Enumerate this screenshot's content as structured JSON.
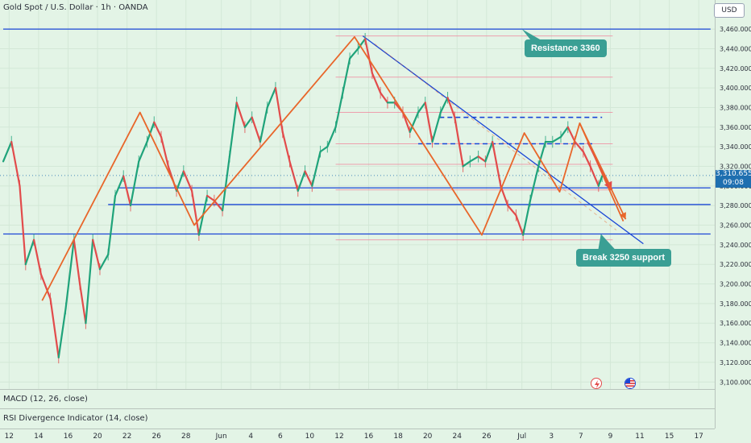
{
  "header": {
    "symbol_title": "Gold Spot / U.S. Dollar · 1h · OANDA",
    "currency": "USD"
  },
  "price_tag": {
    "price": "3,310.655",
    "countdown": "09:08"
  },
  "callouts": {
    "resistance": "Resistance 3360",
    "break_support": "Break 3250 support"
  },
  "indicators": {
    "macd": "MACD (12, 26, close)",
    "rsi": "RSI Divergence Indicator (14, close)"
  },
  "icons": {
    "flash": "flash-icon",
    "flag": "us-flag-icon"
  },
  "colors": {
    "background": "#e3f4e6",
    "candle_up": "#1fa37a",
    "candle_down": "#e24b4b",
    "trendline": "#1a46d6",
    "pattern": "#e8662a",
    "fib_level": "#f08aa0",
    "callout": "#3a9f94",
    "price_tag": "#1e6fb0"
  },
  "chart_data": {
    "type": "line",
    "symbol": "Gold Spot / U.S. Dollar",
    "interval": "1h",
    "source": "OANDA",
    "ylim": [
      3090,
      3475
    ],
    "y_ticks": [
      3100,
      3120,
      3140,
      3160,
      3180,
      3200,
      3220,
      3240,
      3260,
      3280,
      3300,
      3320,
      3340,
      3360,
      3380,
      3400,
      3420,
      3440,
      3460
    ],
    "y_tick_labels": [
      "3,100.000",
      "3,120.000",
      "3,140.000",
      "3,160.000",
      "3,180.000",
      "3,200.000",
      "3,220.000",
      "3,240.000",
      "3,260.000",
      "3,280.000",
      "3,300.000",
      "3,320.000",
      "3,340.000",
      "3,360.000",
      "3,380.000",
      "3,400.000",
      "3,420.000",
      "3,440.000",
      "3,460.000"
    ],
    "x_ticks": [
      {
        "label": "12",
        "d": 0.5
      },
      {
        "label": "14",
        "d": 3
      },
      {
        "label": "16",
        "d": 5.5
      },
      {
        "label": "20",
        "d": 8
      },
      {
        "label": "22",
        "d": 10.5
      },
      {
        "label": "26",
        "d": 13
      },
      {
        "label": "28",
        "d": 15.5
      },
      {
        "label": "Jun",
        "d": 18.5
      },
      {
        "label": "4",
        "d": 21
      },
      {
        "label": "6",
        "d": 23.5
      },
      {
        "label": "10",
        "d": 26
      },
      {
        "label": "12",
        "d": 28.5
      },
      {
        "label": "16",
        "d": 31
      },
      {
        "label": "18",
        "d": 33.5
      },
      {
        "label": "20",
        "d": 36
      },
      {
        "label": "24",
        "d": 38.5
      },
      {
        "label": "26",
        "d": 41
      },
      {
        "label": "Jul",
        "d": 44
      },
      {
        "label": "3",
        "d": 46.5
      },
      {
        "label": "7",
        "d": 49
      },
      {
        "label": "9",
        "d": 51.5
      },
      {
        "label": "11",
        "d": 54
      },
      {
        "label": "15",
        "d": 56.5
      },
      {
        "label": "17",
        "d": 59
      }
    ],
    "xlim": [
      0,
      60
    ],
    "last_price": 3310.655,
    "price_path": [
      [
        0,
        3325
      ],
      [
        0.7,
        3345
      ],
      [
        1.4,
        3300
      ],
      [
        1.9,
        3220
      ],
      [
        2.6,
        3245
      ],
      [
        3.2,
        3210
      ],
      [
        4.0,
        3185
      ],
      [
        4.7,
        3125
      ],
      [
        5.3,
        3175
      ],
      [
        6.0,
        3245
      ],
      [
        6.5,
        3200
      ],
      [
        7.0,
        3160
      ],
      [
        7.6,
        3245
      ],
      [
        8.2,
        3215
      ],
      [
        8.9,
        3230
      ],
      [
        9.5,
        3290
      ],
      [
        10.2,
        3310
      ],
      [
        10.8,
        3280
      ],
      [
        11.5,
        3325
      ],
      [
        12.2,
        3345
      ],
      [
        12.8,
        3365
      ],
      [
        13.4,
        3350
      ],
      [
        14.0,
        3320
      ],
      [
        14.7,
        3295
      ],
      [
        15.3,
        3315
      ],
      [
        16.0,
        3295
      ],
      [
        16.6,
        3250
      ],
      [
        17.3,
        3290
      ],
      [
        17.9,
        3285
      ],
      [
        18.6,
        3275
      ],
      [
        19.2,
        3330
      ],
      [
        19.8,
        3385
      ],
      [
        20.5,
        3360
      ],
      [
        21.1,
        3370
      ],
      [
        21.8,
        3345
      ],
      [
        22.4,
        3380
      ],
      [
        23.1,
        3400
      ],
      [
        23.7,
        3355
      ],
      [
        24.3,
        3325
      ],
      [
        25.0,
        3295
      ],
      [
        25.6,
        3315
      ],
      [
        26.2,
        3300
      ],
      [
        26.9,
        3335
      ],
      [
        27.5,
        3340
      ],
      [
        28.2,
        3360
      ],
      [
        28.8,
        3395
      ],
      [
        29.4,
        3430
      ],
      [
        30.1,
        3440
      ],
      [
        30.7,
        3450
      ],
      [
        31.3,
        3415
      ],
      [
        32.0,
        3395
      ],
      [
        32.6,
        3385
      ],
      [
        33.2,
        3385
      ],
      [
        33.9,
        3375
      ],
      [
        34.5,
        3355
      ],
      [
        35.2,
        3375
      ],
      [
        35.8,
        3385
      ],
      [
        36.4,
        3345
      ],
      [
        37.1,
        3375
      ],
      [
        37.7,
        3390
      ],
      [
        38.3,
        3370
      ],
      [
        39.0,
        3320
      ],
      [
        39.6,
        3325
      ],
      [
        40.3,
        3330
      ],
      [
        40.9,
        3325
      ],
      [
        41.5,
        3345
      ],
      [
        42.2,
        3300
      ],
      [
        42.8,
        3280
      ],
      [
        43.5,
        3270
      ],
      [
        44.1,
        3250
      ],
      [
        44.7,
        3285
      ],
      [
        45.4,
        3320
      ],
      [
        46.0,
        3345
      ],
      [
        46.6,
        3345
      ],
      [
        47.3,
        3350
      ],
      [
        47.9,
        3360
      ],
      [
        48.5,
        3345
      ],
      [
        49.2,
        3335
      ],
      [
        49.8,
        3320
      ],
      [
        50.5,
        3300
      ],
      [
        50.8,
        3310
      ]
    ],
    "trendlines": [
      {
        "name": "resistance",
        "from": [
          0,
          3460
        ],
        "to": [
          60,
          3460
        ]
      },
      {
        "name": "support-upper",
        "from": [
          9.8,
          3298
        ],
        "to": [
          60,
          3298
        ]
      },
      {
        "name": "support-mid",
        "from": [
          8.9,
          3281
        ],
        "to": [
          60,
          3281
        ]
      },
      {
        "name": "support-3250",
        "from": [
          0,
          3251
        ],
        "to": [
          60,
          3251
        ]
      },
      {
        "name": "downtrend",
        "from": [
          30.5,
          3453
        ],
        "to": [
          54.3,
          3241
        ]
      }
    ],
    "dashed_levels": [
      {
        "from": [
          37.0,
          3370
        ],
        "to": [
          50.8,
          3370
        ]
      },
      {
        "from": [
          35.2,
          3343
        ],
        "to": [
          50.2,
          3343
        ]
      }
    ],
    "fib_zone": {
      "from": 28.2,
      "to": 51.7,
      "levels": [
        3453,
        3411,
        3375,
        3343,
        3322,
        3296,
        3245
      ]
    },
    "zigzag": [
      [
        3.3,
        3183
      ],
      [
        11.6,
        3375
      ],
      [
        16.2,
        3260
      ],
      [
        29.8,
        3452
      ],
      [
        40.6,
        3250
      ],
      [
        44.2,
        3354
      ],
      [
        47.2,
        3294
      ],
      [
        48.9,
        3364
      ],
      [
        52.6,
        3264
      ]
    ],
    "projection_arrows": [
      {
        "from": [
          49.6,
          3345
        ],
        "to": [
          51.6,
          3296
        ],
        "color": "#e24b4b"
      },
      {
        "from": [
          48.9,
          3364
        ],
        "to": [
          52.8,
          3266
        ],
        "color": "#e8662a"
      }
    ]
  }
}
